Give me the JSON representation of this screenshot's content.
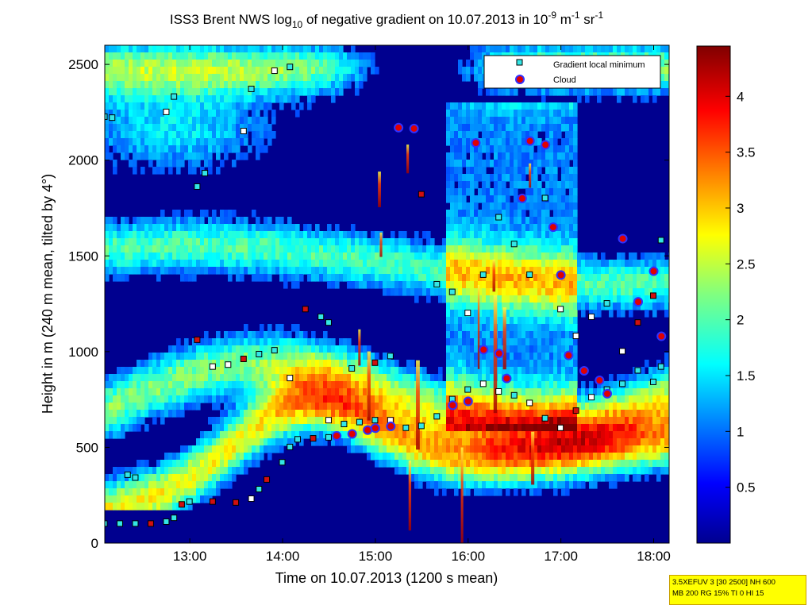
{
  "chart_data": {
    "type": "heatmap",
    "title": "ISS3 Brent NWS log10 of negative gradient on 10.07.2013 in 10-9 m-1 sr-1",
    "title_parts": {
      "a": "ISS3 Brent NWS log",
      "a_sub": "10",
      "b": " of negative gradient on 10.07.2013 in 10",
      "b_sup": "-9",
      "c": " m",
      "c_sup": "-1",
      "d": " sr",
      "d_sup": "-1"
    },
    "xlabel": "Time on 10.07.2013 (1200 s mean)",
    "ylabel": "Height in m (240 m mean, tilted by 4°)",
    "x_range": [
      "12:05",
      "18:10"
    ],
    "y_range": [
      0,
      2600
    ],
    "x_ticks": [
      "13:00",
      "14:00",
      "15:00",
      "16:00",
      "17:00",
      "18:00"
    ],
    "y_ticks": [
      0,
      500,
      1000,
      1500,
      2000,
      2500
    ],
    "colorbar": {
      "min": 0,
      "max": 4.45,
      "ticks": [
        0.5,
        1,
        1.5,
        2,
        2.5,
        3,
        3.5,
        4
      ],
      "colormap": "jet"
    },
    "legend": {
      "position": "top-right",
      "entries": [
        {
          "label": "Gradient local minimum",
          "marker": "square",
          "face": "#33e6e6",
          "edge": "#000000"
        },
        {
          "label": "Cloud",
          "marker": "circle",
          "face": "#e00000",
          "edge": "#3030ff"
        }
      ]
    },
    "series": [
      {
        "name": "Gradient local minimum",
        "points": [
          [
            "12:05",
            100
          ],
          [
            "12:15",
            100
          ],
          [
            "12:25",
            100
          ],
          [
            "12:35",
            100
          ],
          [
            "12:45",
            110
          ],
          [
            "12:50",
            130
          ],
          [
            "12:55",
            200
          ],
          [
            "13:00",
            215
          ],
          [
            "13:15",
            215
          ],
          [
            "13:30",
            210
          ],
          [
            "13:40",
            230
          ],
          [
            "13:45",
            280
          ],
          [
            "13:50",
            330
          ],
          [
            "14:00",
            420
          ],
          [
            "14:05",
            500
          ],
          [
            "14:10",
            540
          ],
          [
            "14:20",
            545
          ],
          [
            "14:30",
            550
          ],
          [
            "12:05",
            2225
          ],
          [
            "12:10",
            2220
          ],
          [
            "12:20",
            355
          ],
          [
            "12:25",
            340
          ],
          [
            "12:45",
            2250
          ],
          [
            "12:50",
            2330
          ],
          [
            "13:05",
            1860
          ],
          [
            "13:10",
            1930
          ],
          [
            "13:35",
            2150
          ],
          [
            "13:40",
            2370
          ],
          [
            "13:55",
            2465
          ],
          [
            "14:05",
            2485
          ],
          [
            "13:05",
            1060
          ],
          [
            "13:15",
            920
          ],
          [
            "13:25",
            930
          ],
          [
            "13:35",
            960
          ],
          [
            "13:45",
            985
          ],
          [
            "13:55",
            1005
          ],
          [
            "14:05",
            860
          ],
          [
            "14:15",
            1220
          ],
          [
            "14:25",
            1180
          ],
          [
            "14:30",
            1150
          ],
          [
            "14:45",
            910
          ],
          [
            "15:00",
            940
          ],
          [
            "15:10",
            975
          ],
          [
            "14:30",
            640
          ],
          [
            "14:40",
            620
          ],
          [
            "14:50",
            630
          ],
          [
            "15:00",
            640
          ],
          [
            "15:10",
            640
          ],
          [
            "15:20",
            600
          ],
          [
            "15:30",
            610
          ],
          [
            "15:40",
            660
          ],
          [
            "15:50",
            750
          ],
          [
            "16:00",
            800
          ],
          [
            "16:10",
            830
          ],
          [
            "16:20",
            790
          ],
          [
            "16:30",
            770
          ],
          [
            "16:40",
            730
          ],
          [
            "16:50",
            650
          ],
          [
            "17:00",
            600
          ],
          [
            "17:10",
            690
          ],
          [
            "17:20",
            760
          ],
          [
            "17:30",
            800
          ],
          [
            "17:40",
            830
          ],
          [
            "17:50",
            900
          ],
          [
            "18:00",
            840
          ],
          [
            "18:05",
            920
          ],
          [
            "15:30",
            1820
          ],
          [
            "15:40",
            1350
          ],
          [
            "15:50",
            1310
          ],
          [
            "16:00",
            1200
          ],
          [
            "16:10",
            1400
          ],
          [
            "16:20",
            1700
          ],
          [
            "16:30",
            1560
          ],
          [
            "16:40",
            1400
          ],
          [
            "16:50",
            1800
          ],
          [
            "17:00",
            1220
          ],
          [
            "17:10",
            1080
          ],
          [
            "17:20",
            1180
          ],
          [
            "17:30",
            1250
          ],
          [
            "17:40",
            1000
          ],
          [
            "17:50",
            1150
          ],
          [
            "18:00",
            1290
          ],
          [
            "18:05",
            1580
          ]
        ]
      },
      {
        "name": "Cloud",
        "points": [
          [
            "14:35",
            560
          ],
          [
            "14:45",
            570
          ],
          [
            "14:55",
            590
          ],
          [
            "15:00",
            600
          ],
          [
            "15:10",
            610
          ],
          [
            "15:15",
            2170
          ],
          [
            "15:25",
            2165
          ],
          [
            "15:50",
            720
          ],
          [
            "16:00",
            740
          ],
          [
            "16:05",
            2090
          ],
          [
            "16:10",
            1010
          ],
          [
            "16:20",
            990
          ],
          [
            "16:25",
            860
          ],
          [
            "16:35",
            1800
          ],
          [
            "16:40",
            2100
          ],
          [
            "16:50",
            2080
          ],
          [
            "16:55",
            1650
          ],
          [
            "17:00",
            1400
          ],
          [
            "17:05",
            980
          ],
          [
            "17:15",
            900
          ],
          [
            "17:25",
            850
          ],
          [
            "17:30",
            780
          ],
          [
            "17:40",
            1590
          ],
          [
            "17:50",
            1260
          ],
          [
            "18:00",
            1420
          ],
          [
            "18:05",
            1080
          ]
        ]
      }
    ]
  },
  "info": [
    "3.5XEFUV 3 [30 2500] NH 600",
    "MB 200 RG 15% TI 0 HI 15"
  ]
}
